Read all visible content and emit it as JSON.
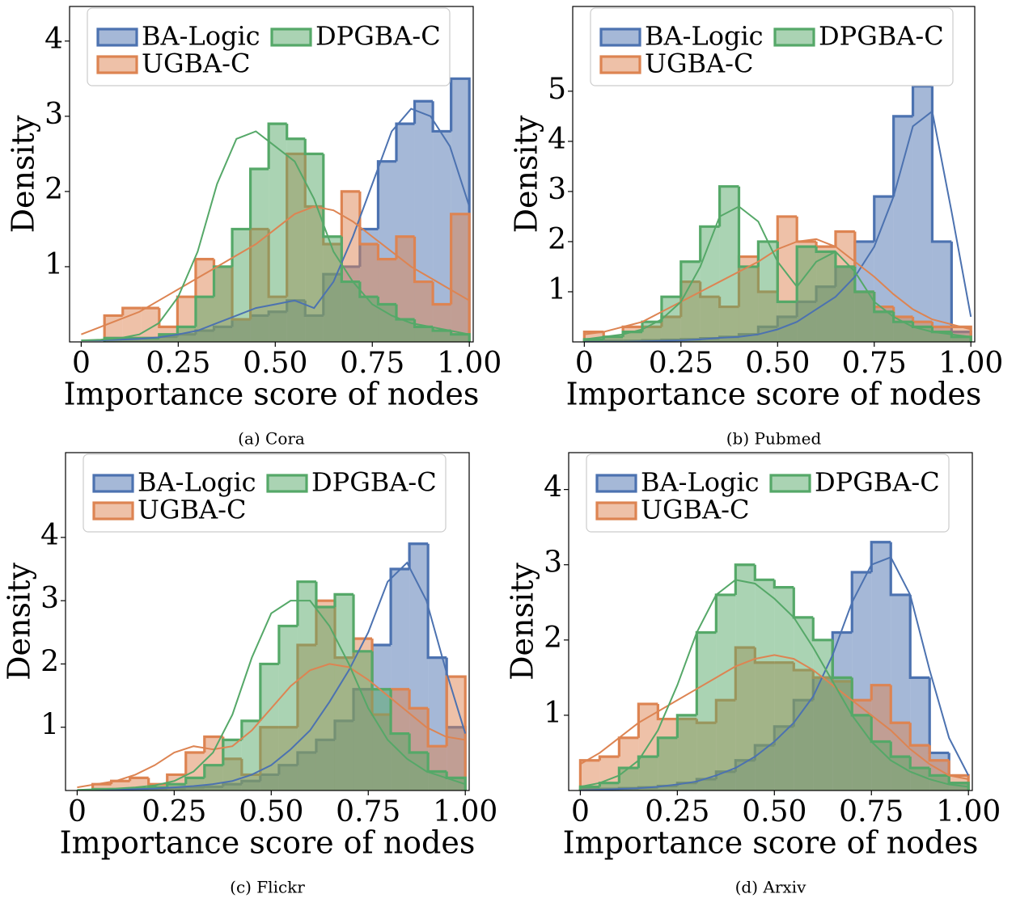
{
  "chart_data": [
    {
      "type": "histogram",
      "caption": "(a) Cora",
      "xlabel": "Importance score of nodes",
      "ylabel": "Density",
      "xlim": [
        -0.03,
        1.01
      ],
      "ylim": [
        0,
        4.46
      ],
      "xticks": [
        0,
        0.25,
        {
          "value": 0.5,
          "label": "0.50"
        },
        0.75,
        {
          "value": 1,
          "label": "1.00"
        }
      ],
      "yticks": [
        1,
        2,
        3,
        4
      ],
      "legend": "upper left",
      "bins": [
        0.06,
        0.107,
        0.154,
        0.201,
        0.248,
        0.295,
        0.342,
        0.389,
        0.436,
        0.483,
        0.53,
        0.577,
        0.624,
        0.671,
        0.718,
        0.765,
        0.812,
        0.859,
        0.906,
        0.953,
        1.0
      ],
      "kde_x": [
        0,
        0.05,
        0.1,
        0.15,
        0.2,
        0.25,
        0.3,
        0.35,
        0.4,
        0.45,
        0.5,
        0.55,
        0.6,
        0.65,
        0.7,
        0.75,
        0.8,
        0.85,
        0.9,
        0.95,
        1.0
      ],
      "series": [
        {
          "name": "BA-Logic",
          "color": "#4c72b0",
          "values": [
            0.05,
            0.05,
            0.05,
            0.07,
            0.1,
            0.15,
            0.2,
            0.3,
            0.35,
            0.4,
            0.55,
            0.35,
            0.9,
            1.0,
            1.5,
            2.4,
            2.9,
            3.2,
            2.8,
            3.5
          ],
          "kde": [
            0.02,
            0.02,
            0.03,
            0.04,
            0.06,
            0.1,
            0.15,
            0.25,
            0.35,
            0.45,
            0.5,
            0.55,
            0.45,
            0.8,
            1.4,
            2.1,
            2.8,
            3.1,
            3.0,
            2.6,
            1.8
          ]
        },
        {
          "name": "UGBA-C",
          "color": "#dd8452",
          "values": [
            0.35,
            0.45,
            0.45,
            0.2,
            0.6,
            1.1,
            1.0,
            0.3,
            1.5,
            0.6,
            2.5,
            1.8,
            1.3,
            2.0,
            1.3,
            1.1,
            1.4,
            0.8,
            0.5,
            1.7
          ],
          "kde": [
            0.1,
            0.2,
            0.3,
            0.4,
            0.55,
            0.7,
            0.85,
            1.0,
            1.15,
            1.3,
            1.5,
            1.7,
            1.8,
            1.75,
            1.6,
            1.4,
            1.2,
            1.0,
            0.85,
            0.7,
            0.55
          ]
        },
        {
          "name": "DPGBA-C",
          "color": "#55a868",
          "values": [
            0.05,
            0.05,
            0.05,
            0.1,
            0.2,
            0.6,
            1.0,
            1.5,
            2.3,
            2.9,
            2.7,
            2.5,
            1.4,
            0.8,
            0.6,
            0.5,
            0.3,
            0.2,
            0.15,
            0.1
          ],
          "kde": [
            0.02,
            0.03,
            0.05,
            0.1,
            0.25,
            0.6,
            1.2,
            2.1,
            2.7,
            2.8,
            2.6,
            2.4,
            1.9,
            1.2,
            0.8,
            0.5,
            0.35,
            0.25,
            0.2,
            0.15,
            0.1
          ]
        }
      ]
    },
    {
      "type": "histogram",
      "caption": "(b) Pubmed",
      "xlabel": "Importance score of nodes",
      "ylabel": "Density",
      "xlim": [
        -0.03,
        1.01
      ],
      "ylim": [
        0,
        6.69
      ],
      "xticks": [
        0,
        0.25,
        {
          "value": 0.5,
          "label": "0.50"
        },
        0.75,
        {
          "value": 1,
          "label": "1.00"
        }
      ],
      "yticks": [
        1,
        2,
        3,
        4,
        5
      ],
      "legend": "upper left",
      "bins": [
        0,
        0.05,
        0.1,
        0.15,
        0.2,
        0.25,
        0.3,
        0.35,
        0.4,
        0.45,
        0.5,
        0.55,
        0.6,
        0.65,
        0.7,
        0.75,
        0.8,
        0.85,
        0.9,
        0.95,
        1.0
      ],
      "kde_x": [
        0,
        0.05,
        0.1,
        0.15,
        0.2,
        0.25,
        0.3,
        0.35,
        0.4,
        0.45,
        0.5,
        0.55,
        0.6,
        0.65,
        0.7,
        0.75,
        0.8,
        0.85,
        0.9,
        0.95,
        1.0
      ],
      "series": [
        {
          "name": "BA-Logic",
          "color": "#4c72b0",
          "values": [
            0.02,
            0.02,
            0.02,
            0.03,
            0.04,
            0.05,
            0.07,
            0.1,
            0.15,
            0.3,
            0.5,
            0.8,
            1.1,
            1.5,
            2.0,
            2.9,
            4.5,
            5.1,
            2.0,
            0.2
          ],
          "kde": [
            0,
            0,
            0,
            0.01,
            0.02,
            0.03,
            0.05,
            0.08,
            0.1,
            0.15,
            0.25,
            0.4,
            0.65,
            0.9,
            1.3,
            1.9,
            2.9,
            4.3,
            4.6,
            2.6,
            0.5
          ]
        },
        {
          "name": "UGBA-C",
          "color": "#dd8452",
          "values": [
            0.2,
            0.1,
            0.3,
            0.3,
            0.5,
            1.2,
            0.9,
            0.7,
            1.7,
            1.0,
            2.5,
            2.0,
            1.9,
            2.2,
            1.0,
            0.7,
            0.5,
            0.4,
            0.3,
            0.3
          ],
          "kde": [
            0.15,
            0.2,
            0.3,
            0.4,
            0.6,
            0.8,
            1.0,
            1.2,
            1.4,
            1.6,
            1.85,
            2.0,
            2.05,
            1.9,
            1.6,
            1.3,
            0.95,
            0.65,
            0.45,
            0.35,
            0.25
          ]
        },
        {
          "name": "DPGBA-C",
          "color": "#55a868",
          "values": [
            0.05,
            0.1,
            0.2,
            0.4,
            0.9,
            1.6,
            2.3,
            3.1,
            1.5,
            2.0,
            0.8,
            1.9,
            1.8,
            1.5,
            1.0,
            0.6,
            0.4,
            0.3,
            0.2,
            0.1
          ],
          "kde": [
            0.05,
            0.1,
            0.15,
            0.25,
            0.45,
            0.8,
            1.5,
            2.5,
            2.7,
            2.4,
            1.6,
            1.1,
            1.6,
            1.8,
            1.4,
            0.8,
            0.5,
            0.3,
            0.2,
            0.15,
            0.1
          ]
        }
      ]
    },
    {
      "type": "histogram",
      "caption": "(c) Flickr",
      "xlabel": "Importance score of nodes",
      "ylabel": "Density",
      "xlim": [
        -0.03,
        1.01
      ],
      "ylim": [
        0,
        5.34
      ],
      "xticks": [
        0,
        0.25,
        {
          "value": 0.5,
          "label": "0.50"
        },
        0.75,
        {
          "value": 1,
          "label": "1.00"
        }
      ],
      "yticks": [
        1,
        2,
        3,
        4
      ],
      "legend": "upper left",
      "bins": [
        0.04,
        0.088,
        0.136,
        0.184,
        0.232,
        0.28,
        0.328,
        0.376,
        0.424,
        0.472,
        0.52,
        0.568,
        0.616,
        0.664,
        0.712,
        0.76,
        0.808,
        0.856,
        0.904,
        0.952,
        1.0
      ],
      "kde_x": [
        0,
        0.05,
        0.1,
        0.15,
        0.2,
        0.25,
        0.3,
        0.35,
        0.4,
        0.45,
        0.5,
        0.55,
        0.6,
        0.65,
        0.7,
        0.75,
        0.8,
        0.85,
        0.9,
        0.95,
        1.0
      ],
      "series": [
        {
          "name": "BA-Logic",
          "color": "#4c72b0",
          "values": [
            0.02,
            0.02,
            0.03,
            0.03,
            0.04,
            0.05,
            0.06,
            0.1,
            0.15,
            0.25,
            0.4,
            0.6,
            0.8,
            1.1,
            1.6,
            2.3,
            3.5,
            3.9,
            2.1,
            1.0
          ],
          "kde": [
            0,
            0,
            0.01,
            0.02,
            0.03,
            0.05,
            0.07,
            0.1,
            0.15,
            0.25,
            0.4,
            0.65,
            0.95,
            1.4,
            1.9,
            2.5,
            3.3,
            3.6,
            3.0,
            1.9,
            0.9
          ]
        },
        {
          "name": "UGBA-C",
          "color": "#dd8452",
          "values": [
            0.1,
            0.15,
            0.2,
            0.1,
            0.25,
            0.6,
            0.85,
            0.5,
            0.25,
            1.0,
            1.0,
            2.3,
            3.0,
            2.1,
            2.4,
            1.2,
            1.6,
            1.3,
            0.7,
            1.8
          ],
          "kde": [
            0.05,
            0.1,
            0.15,
            0.25,
            0.4,
            0.6,
            0.7,
            0.65,
            0.7,
            0.95,
            1.3,
            1.65,
            1.9,
            2.0,
            1.95,
            1.75,
            1.5,
            1.25,
            1.0,
            0.85,
            0.8
          ]
        },
        {
          "name": "DPGBA-C",
          "color": "#55a868",
          "values": [
            0.02,
            0.02,
            0.03,
            0.05,
            0.1,
            0.2,
            0.4,
            0.8,
            1.1,
            2.0,
            2.6,
            3.3,
            2.9,
            3.1,
            2.2,
            1.6,
            0.9,
            0.6,
            0.3,
            0.2
          ],
          "kde": [
            0.01,
            0.02,
            0.03,
            0.05,
            0.08,
            0.15,
            0.3,
            0.6,
            1.2,
            2.1,
            2.8,
            3.0,
            3.0,
            2.6,
            2.0,
            1.3,
            0.8,
            0.5,
            0.3,
            0.2,
            0.1
          ]
        }
      ]
    },
    {
      "type": "histogram",
      "caption": "(d) Arxiv",
      "xlabel": "Importance score of nodes",
      "ylabel": "Density",
      "xlim": [
        -0.03,
        1.01
      ],
      "ylim": [
        0,
        4.49
      ],
      "xticks": [
        0,
        0.25,
        {
          "value": 0.5,
          "label": "0.50"
        },
        0.75,
        {
          "value": 1,
          "label": "1.00"
        }
      ],
      "yticks": [
        1,
        2,
        3,
        4
      ],
      "legend": "upper left",
      "bins": [
        0,
        0.05,
        0.1,
        0.15,
        0.2,
        0.25,
        0.3,
        0.35,
        0.4,
        0.45,
        0.5,
        0.55,
        0.6,
        0.65,
        0.7,
        0.75,
        0.8,
        0.85,
        0.9,
        0.95,
        1.0
      ],
      "kde_x": [
        0,
        0.05,
        0.1,
        0.15,
        0.2,
        0.25,
        0.3,
        0.35,
        0.4,
        0.45,
        0.5,
        0.55,
        0.6,
        0.65,
        0.7,
        0.75,
        0.8,
        0.85,
        0.9,
        0.95,
        1.0
      ],
      "series": [
        {
          "name": "BA-Logic",
          "color": "#4c72b0",
          "values": [
            0.02,
            0.02,
            0.03,
            0.04,
            0.06,
            0.1,
            0.15,
            0.25,
            0.4,
            0.6,
            0.85,
            1.2,
            1.5,
            2.1,
            2.9,
            3.3,
            2.6,
            1.5,
            0.5,
            0.1
          ],
          "kde": [
            0,
            0.01,
            0.02,
            0.03,
            0.05,
            0.08,
            0.12,
            0.2,
            0.3,
            0.45,
            0.65,
            0.9,
            1.25,
            1.8,
            2.5,
            3.0,
            3.1,
            2.6,
            1.6,
            0.7,
            0.2
          ]
        },
        {
          "name": "UGBA-C",
          "color": "#dd8452",
          "values": [
            0.4,
            0.45,
            0.7,
            1.15,
            0.95,
            0.95,
            0.9,
            1.2,
            1.9,
            1.7,
            1.7,
            1.6,
            1.5,
            1.45,
            1.2,
            1.4,
            0.9,
            0.6,
            0.4,
            0.2
          ],
          "kde": [
            0.35,
            0.5,
            0.7,
            0.9,
            1.05,
            1.2,
            1.35,
            1.5,
            1.65,
            1.75,
            1.8,
            1.75,
            1.6,
            1.4,
            1.2,
            1.0,
            0.8,
            0.55,
            0.35,
            0.2,
            0.15
          ]
        },
        {
          "name": "DPGBA-C",
          "color": "#55a868",
          "values": [
            0.05,
            0.1,
            0.3,
            0.45,
            0.7,
            1.0,
            2.1,
            2.6,
            3.0,
            2.8,
            2.7,
            2.3,
            2.0,
            1.5,
            1.0,
            0.65,
            0.45,
            0.3,
            0.2,
            0.1
          ],
          "kde": [
            0.05,
            0.1,
            0.2,
            0.4,
            0.8,
            1.4,
            2.1,
            2.6,
            2.8,
            2.75,
            2.55,
            2.3,
            1.9,
            1.45,
            1.0,
            0.65,
            0.4,
            0.25,
            0.15,
            0.08,
            0.05
          ]
        }
      ]
    }
  ]
}
